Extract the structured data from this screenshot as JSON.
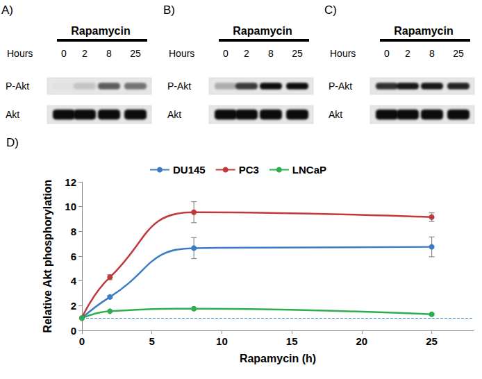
{
  "blots": [
    {
      "letter": "A)",
      "treatment": "Rapamycin",
      "time_label": "Hours",
      "times": [
        0,
        2,
        8,
        25
      ],
      "rows": [
        {
          "label": "P-Akt",
          "intensity": [
            0.02,
            0.15,
            0.6,
            0.5
          ]
        },
        {
          "label": "Akt",
          "intensity": [
            0.95,
            0.95,
            0.95,
            0.95
          ]
        }
      ]
    },
    {
      "letter": "B)",
      "treatment": "Rapamycin",
      "time_label": "Hours",
      "times": [
        0,
        2,
        8,
        25
      ],
      "rows": [
        {
          "label": "P-Akt",
          "intensity": [
            0.25,
            0.75,
            0.95,
            0.95
          ]
        },
        {
          "label": "Akt",
          "intensity": [
            0.95,
            0.95,
            0.95,
            0.95
          ]
        }
      ]
    },
    {
      "letter": "C)",
      "treatment": "Rapamycin",
      "time_label": "Hours",
      "times": [
        0,
        2,
        8,
        25
      ],
      "rows": [
        {
          "label": "P-Akt",
          "intensity": [
            0.8,
            0.9,
            0.9,
            0.85
          ]
        },
        {
          "label": "Akt",
          "intensity": [
            0.95,
            0.95,
            0.95,
            0.95
          ]
        }
      ]
    }
  ],
  "chart_data": {
    "type": "line",
    "title": "D)",
    "x_label": "Rapamycin (h)",
    "y_label": "Relative Akt phosphorylation",
    "x": [
      0,
      2,
      8,
      25
    ],
    "series": [
      {
        "name": "DU145",
        "color": "#3b7cc4",
        "values": [
          1,
          2.7,
          6.65,
          6.75
        ],
        "errors": [
          0,
          0.1,
          0.85,
          0.8
        ]
      },
      {
        "name": "PC3",
        "color": "#c0393b",
        "values": [
          1,
          4.3,
          9.55,
          9.15
        ],
        "errors": [
          0,
          0.2,
          0.85,
          0.35
        ]
      },
      {
        "name": "LNCaP",
        "color": "#2eae4e",
        "values": [
          1,
          1.55,
          1.75,
          1.3
        ],
        "errors": [
          0,
          0.05,
          0.05,
          0.05
        ]
      }
    ],
    "baseline": 1,
    "xlim": [
      0,
      28
    ],
    "xticks": [
      0,
      5,
      10,
      15,
      20,
      25
    ],
    "ylim": [
      0,
      12
    ],
    "yticks": [
      0,
      2,
      4,
      6,
      8,
      10,
      12
    ],
    "grid": false,
    "legend": "top",
    "marker": "circle",
    "line_style": "smooth"
  }
}
